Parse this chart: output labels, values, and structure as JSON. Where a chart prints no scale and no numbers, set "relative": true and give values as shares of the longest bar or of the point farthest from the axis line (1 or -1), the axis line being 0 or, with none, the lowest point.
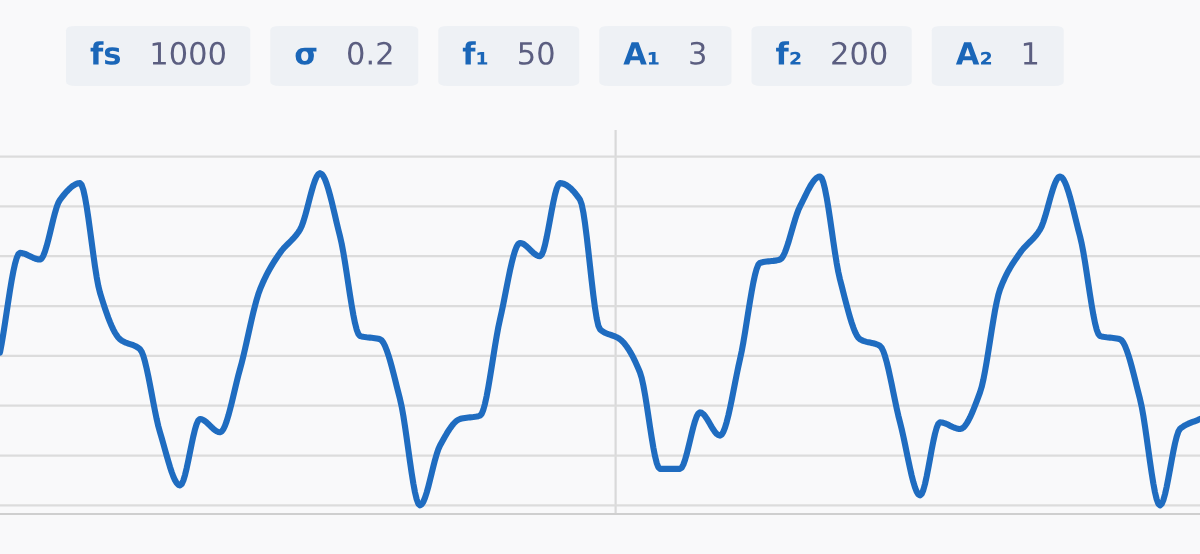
{
  "chart_data": {
    "type": "line",
    "relative": true,
    "annotations": [
      "fs 1000",
      "σ 0.2",
      "f₁ 50",
      "A₁ 3",
      "f₂ 200",
      "A₂ 1"
    ],
    "categories": [
      null,
      null,
      null,
      null,
      null,
      null,
      null,
      null,
      null,
      null,
      null,
      null,
      null,
      null,
      null,
      null,
      null,
      null,
      null,
      null,
      null,
      null,
      null,
      null,
      null,
      null,
      null,
      null,
      null,
      null,
      null,
      null,
      null,
      null,
      null,
      null,
      null,
      null,
      null,
      null,
      null,
      null,
      null,
      null,
      null,
      null,
      null,
      null,
      null,
      null,
      null,
      null,
      null,
      null,
      null,
      null,
      null,
      null,
      null,
      null,
      null
    ],
    "series": [
      {
        "color": "#1f6cc0",
        "values": [
          0.46,
          0.76,
          0.74,
          0.92,
          0.97,
          0.64,
          0.5,
          0.47,
          0.22,
          0.06,
          0.26,
          0.22,
          0.41,
          0.65,
          0.76,
          0.83,
          1.0,
          0.81,
          0.51,
          0.5,
          0.32,
          0.0,
          0.18,
          0.26,
          0.27,
          0.56,
          0.79,
          0.75,
          0.97,
          0.92,
          0.53,
          0.5,
          0.4,
          0.11,
          0.11,
          0.28,
          0.21,
          0.44,
          0.73,
          0.74,
          0.9,
          0.99,
          0.68,
          0.5,
          0.48,
          0.25,
          0.03,
          0.25,
          0.23,
          0.34,
          0.65,
          0.76,
          0.83,
          0.99,
          0.81,
          0.51,
          0.5,
          0.32,
          0.0,
          0.23,
          0.26
        ]
      }
    ],
    "grid": "y",
    "tick_labels": false,
    "legend": false,
    "marker": "none",
    "line_style": "solid"
  }
}
